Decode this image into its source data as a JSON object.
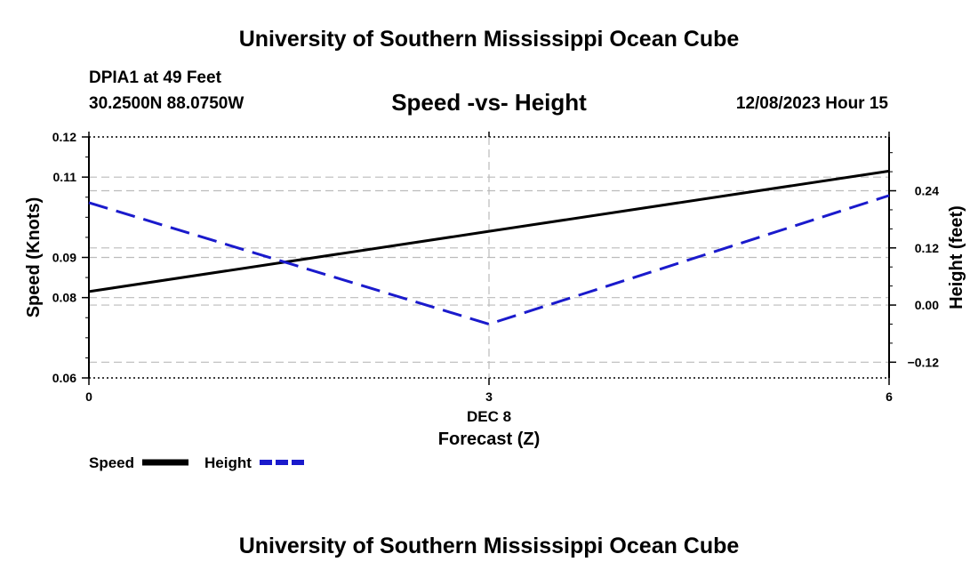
{
  "header": {
    "title": "University of Southern Mississippi Ocean Cube",
    "station": "DPIA1 at 49 Feet",
    "coords": "30.2500N  88.0750W",
    "datetime": "12/08/2023 Hour 15"
  },
  "footer": {
    "title": "University of Southern Mississippi Ocean Cube"
  },
  "chart_data": {
    "type": "line",
    "title": "Speed -vs- Height",
    "xlabel": "Forecast (Z)",
    "x_date_label": "DEC 8",
    "ylabel": "Speed (Knots)",
    "y2label": "Height (feet)",
    "x": [
      0,
      3,
      6
    ],
    "x_ticks": [
      "0",
      "3",
      "6"
    ],
    "xlim": [
      0,
      6
    ],
    "ylim": [
      0.06,
      0.12
    ],
    "y_ticks": [
      "0.06",
      "0.08",
      "0.09",
      "0.11",
      "0.12"
    ],
    "y2lim": [
      -0.153,
      0.353
    ],
    "y2_ticks": [
      "-0.12",
      "0.00",
      "0.12",
      "0.24"
    ],
    "series": [
      {
        "name": "Speed",
        "axis": "left",
        "color": "#000000",
        "style": "solid",
        "values": [
          0.0815,
          0.0965,
          0.1115
        ]
      },
      {
        "name": "Height",
        "axis": "right",
        "color": "#1a1acc",
        "style": "dashed",
        "values": [
          0.215,
          -0.04,
          0.23
        ]
      }
    ],
    "legend": {
      "position": "bottom-left",
      "speed_label": "Speed",
      "height_label": "Height"
    }
  }
}
